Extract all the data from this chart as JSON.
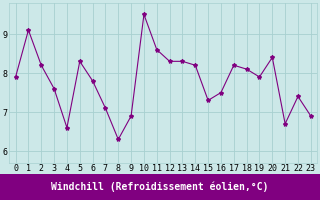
{
  "x": [
    0,
    1,
    2,
    3,
    4,
    5,
    6,
    7,
    8,
    9,
    10,
    11,
    12,
    13,
    14,
    15,
    16,
    17,
    18,
    19,
    20,
    21,
    22,
    23
  ],
  "y": [
    7.9,
    9.1,
    8.2,
    7.6,
    6.6,
    8.3,
    7.8,
    7.1,
    6.3,
    6.9,
    9.5,
    8.6,
    8.3,
    8.3,
    8.2,
    7.3,
    7.5,
    8.2,
    8.1,
    7.9,
    8.4,
    6.7,
    7.4,
    6.9
  ],
  "line_color": "#800080",
  "marker": "*",
  "marker_size": 3,
  "bg_color": "#cce8e8",
  "grid_color": "#a8d0d0",
  "xlabel": "Windchill (Refroidissement éolien,°C)",
  "xlabel_bg": "#800080",
  "xlabel_color": "#ffffff",
  "yticks": [
    6,
    7,
    8,
    9
  ],
  "xticks": [
    0,
    1,
    2,
    3,
    4,
    5,
    6,
    7,
    8,
    9,
    10,
    11,
    12,
    13,
    14,
    15,
    16,
    17,
    18,
    19,
    20,
    21,
    22,
    23
  ],
  "xlim": [
    -0.5,
    23.5
  ],
  "ylim": [
    5.7,
    9.8
  ],
  "tick_fontsize": 6,
  "xlabel_fontsize": 7
}
